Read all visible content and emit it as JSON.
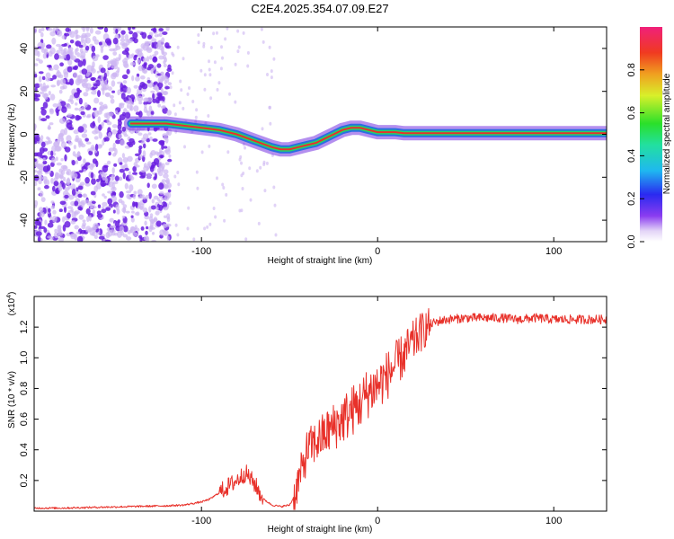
{
  "title": "C2E4.2025.354.07.09.E27",
  "colors": {
    "trace": "#e8312a",
    "dots": "#6a1fe0",
    "dots_light": "#cdb6f2",
    "track_core": "#e8312a",
    "track_mid": "#22d46a",
    "track_edge": "#2a6fe0"
  },
  "chart_data": [
    {
      "type": "heatmap",
      "xlabel": "Height of straight line (km)",
      "ylabel": "Frequency (Hz)",
      "xlim": [
        -195,
        130
      ],
      "ylim": [
        -50,
        50
      ],
      "xticks": [
        -100,
        0,
        100
      ],
      "xtick_labels": [
        "-100",
        "0",
        "100"
      ],
      "yticks": [
        -40,
        -20,
        0,
        20,
        40
      ],
      "ytick_labels": [
        "-40",
        "-20",
        "0",
        "20",
        "40"
      ],
      "colorbar": {
        "label": "Normalized spectral amplitude",
        "range": [
          0,
          1
        ],
        "ticks": [
          0.0,
          0.2,
          0.4,
          0.6,
          0.8
        ],
        "tick_labels": [
          "0.0",
          "0.2",
          "0.4",
          "0.6",
          "0.8"
        ]
      },
      "track": {
        "x": [
          -140,
          -130,
          -120,
          -110,
          -100,
          -90,
          -80,
          -70,
          -60,
          -55,
          -50,
          -45,
          -40,
          -35,
          -30,
          -25,
          -20,
          -15,
          -10,
          -5,
          0,
          5,
          10,
          15,
          130
        ],
        "y": [
          5,
          5,
          5,
          4,
          3,
          2,
          0,
          -3,
          -6,
          -7,
          -7,
          -6,
          -5,
          -4,
          -2,
          0,
          2,
          3,
          3,
          2,
          1,
          1,
          1,
          0.5,
          0.5
        ]
      },
      "noise_region_x": [
        -195,
        -118
      ]
    },
    {
      "type": "line",
      "xlabel": "Height of straight line (km)",
      "ylabel": "SNR (10 * v/v)",
      "y_multiplier": "(x10^4)",
      "multiplier_base": "(x10",
      "multiplier_exp": "4",
      "multiplier_close": ")",
      "xlim": [
        -195,
        130
      ],
      "ylim": [
        0,
        1.4
      ],
      "xticks": [
        -100,
        0,
        100
      ],
      "xtick_labels": [
        "-100",
        "0",
        "100"
      ],
      "yticks": [
        0.2,
        0.4,
        0.6,
        0.8,
        1.0,
        1.2
      ],
      "ytick_labels": [
        "0.2",
        "0.4",
        "0.6",
        "0.8",
        "1.0",
        "1.2"
      ],
      "series": [
        {
          "name": "SNR",
          "x": [
            -195,
            -180,
            -160,
            -140,
            -120,
            -110,
            -100,
            -95,
            -90,
            -85,
            -80,
            -75,
            -70,
            -65,
            -60,
            -55,
            -50,
            -47,
            -45,
            -42,
            -40,
            -35,
            -30,
            -25,
            -20,
            -15,
            -10,
            -5,
            0,
            5,
            10,
            15,
            20,
            25,
            30,
            35,
            40,
            50,
            60,
            70,
            80,
            90,
            100,
            110,
            120,
            130
          ],
          "y": [
            0.02,
            0.02,
            0.025,
            0.03,
            0.035,
            0.04,
            0.06,
            0.08,
            0.12,
            0.16,
            0.2,
            0.25,
            0.18,
            0.08,
            0.04,
            0.03,
            0.04,
            0.1,
            0.2,
            0.3,
            0.4,
            0.45,
            0.5,
            0.55,
            0.6,
            0.65,
            0.7,
            0.78,
            0.82,
            0.88,
            0.95,
            1.02,
            1.1,
            1.17,
            1.22,
            1.24,
            1.25,
            1.26,
            1.26,
            1.26,
            1.25,
            1.26,
            1.25,
            1.25,
            1.25,
            1.25
          ]
        }
      ]
    }
  ]
}
